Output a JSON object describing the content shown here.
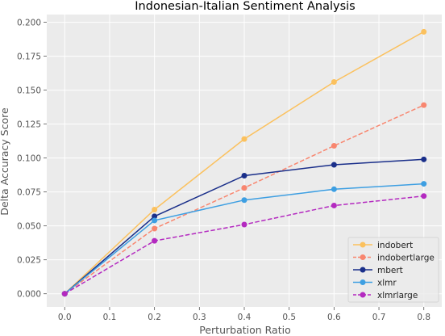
{
  "chart_data": {
    "type": "line",
    "title": "Indonesian-Italian Sentiment Analysis",
    "xlabel": "Perturbation Ratio",
    "ylabel": "Delta Accuracy Score",
    "x": [
      0.0,
      0.2,
      0.4,
      0.6,
      0.8
    ],
    "xlim": [
      -0.04,
      0.84
    ],
    "ylim": [
      -0.0097,
      0.2057
    ],
    "xticks": [
      "0.0",
      "0.1",
      "0.2",
      "0.3",
      "0.4",
      "0.5",
      "0.6",
      "0.7",
      "0.8"
    ],
    "yticks": [
      "0.000",
      "0.025",
      "0.050",
      "0.075",
      "0.100",
      "0.125",
      "0.150",
      "0.175",
      "0.200"
    ],
    "grid": true,
    "legend_position": "bottom-right",
    "series": [
      {
        "name": "indobert",
        "values": [
          0.0,
          0.062,
          0.114,
          0.156,
          0.193
        ],
        "color": "#fbc15e",
        "dash": "solid"
      },
      {
        "name": "indobertlarge",
        "values": [
          0.0,
          0.048,
          0.078,
          0.109,
          0.139
        ],
        "color": "#f8866f",
        "dash": "dashed"
      },
      {
        "name": "mbert",
        "values": [
          0.0,
          0.057,
          0.087,
          0.095,
          0.099
        ],
        "color": "#1a2f8a",
        "dash": "solid"
      },
      {
        "name": "xlmr",
        "values": [
          0.0,
          0.054,
          0.069,
          0.077,
          0.081
        ],
        "color": "#3e9fe2",
        "dash": "solid"
      },
      {
        "name": "xlmrlarge",
        "values": [
          0.0,
          0.039,
          0.051,
          0.065,
          0.072
        ],
        "color": "#b42ac0",
        "dash": "dashed"
      }
    ]
  },
  "style": {
    "plot_background": "#ebebeb",
    "grid_color": "#ffffff"
  }
}
